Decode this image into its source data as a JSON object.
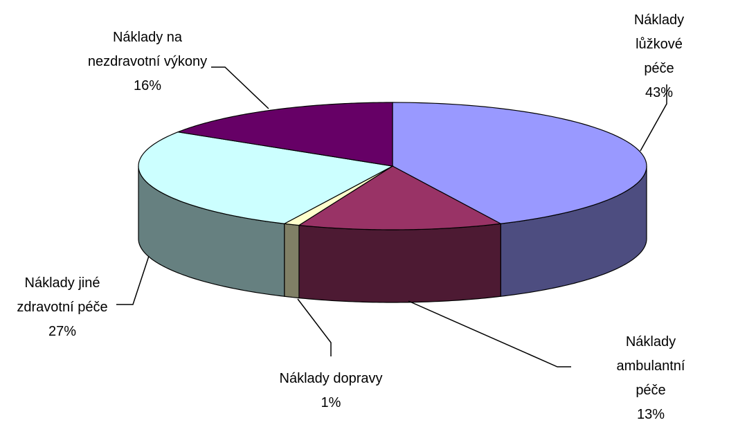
{
  "chart_data": {
    "type": "pie3d",
    "categories": [
      "Náklady lůžkové\npéče",
      "Náklady ambulantní\npéče",
      "Náklady dopravy",
      "Náklady jiné\nzdravotní péče",
      "Náklady na\nnezdravotní výkony"
    ],
    "values": [
      43,
      13,
      1,
      27,
      16
    ],
    "value_labels": [
      "43%",
      "13%",
      "1%",
      "27%",
      "16%"
    ],
    "colors": [
      "#9999ff",
      "#993366",
      "#ffffcc",
      "#ccffff",
      "#660066"
    ]
  }
}
